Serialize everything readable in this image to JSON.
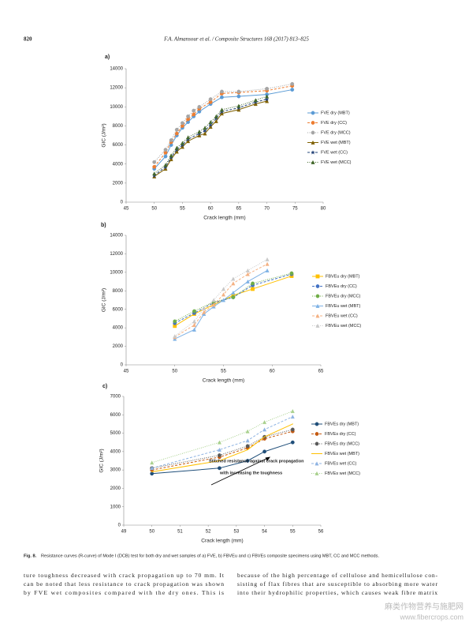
{
  "header": {
    "page": "820",
    "journal": "F.A. Almansour et al. / Composite Structures 168 (2017) 813–825"
  },
  "chart_data": [
    {
      "type": "line",
      "panel": "a)",
      "xlabel": "Crack length (mm)",
      "ylabel": "GIC (J/m²)",
      "xlim": [
        45,
        80
      ],
      "xticks": [
        45,
        50,
        55,
        60,
        65,
        70,
        75,
        80
      ],
      "ylim": [
        0,
        14000
      ],
      "yticks": [
        0,
        2000,
        4000,
        6000,
        8000,
        10000,
        12000,
        14000
      ],
      "series": [
        {
          "name": "FVE dry (MBT)",
          "color": "#5b9bd5",
          "dash": "solid",
          "marker": "circle",
          "x": [
            50,
            52,
            53,
            54,
            55,
            56,
            57,
            58,
            60,
            62,
            65,
            70,
            74.5
          ],
          "values": [
            3500,
            4800,
            6000,
            7000,
            7800,
            8400,
            9000,
            9500,
            10300,
            11000,
            11100,
            11300,
            11800
          ]
        },
        {
          "name": "FVE dry (CC)",
          "color": "#ed7d31",
          "dash": "dash",
          "marker": "circle",
          "x": [
            50,
            52,
            53,
            54,
            55,
            56,
            57,
            58,
            60,
            62,
            65,
            70,
            74.5
          ],
          "values": [
            3700,
            5200,
            6300,
            7200,
            8000,
            8700,
            9200,
            9800,
            10500,
            11400,
            11500,
            11700,
            12200
          ]
        },
        {
          "name": "FVE dry (MCC)",
          "color": "#a5a5a5",
          "dash": "dot",
          "marker": "circle",
          "x": [
            50,
            52,
            53,
            54,
            55,
            56,
            57,
            58,
            60,
            62,
            65,
            70,
            74.5
          ],
          "values": [
            4200,
            5500,
            6500,
            7600,
            8300,
            9000,
            9600,
            10000,
            10800,
            11600,
            11600,
            11900,
            12400
          ]
        },
        {
          "name": "FVE wet (MBT)",
          "color": "#7f6000",
          "dash": "solid",
          "marker": "triangle",
          "x": [
            50,
            52,
            53,
            54,
            55,
            56,
            58,
            59,
            60,
            61,
            62,
            65,
            68,
            70
          ],
          "values": [
            2700,
            3500,
            4500,
            5300,
            5800,
            6400,
            7000,
            7200,
            7900,
            8500,
            9300,
            9700,
            10300,
            10600
          ]
        },
        {
          "name": "FVE wet (CC)",
          "color": "#264478",
          "dash": "dash",
          "marker": "star",
          "x": [
            50,
            52,
            53,
            54,
            55,
            56,
            58,
            59,
            60,
            61,
            62,
            65,
            68,
            70
          ],
          "values": [
            2800,
            3700,
            4700,
            5500,
            6000,
            6600,
            7200,
            7500,
            8100,
            8800,
            9500,
            9900,
            10500,
            10800
          ]
        },
        {
          "name": "FVE wet (MCC)",
          "color": "#43682b",
          "dash": "dot",
          "marker": "triangle",
          "x": [
            50,
            52,
            53,
            54,
            55,
            56,
            58,
            59,
            60,
            61,
            62,
            65,
            68,
            70
          ],
          "values": [
            3000,
            3900,
            4900,
            5700,
            6200,
            6800,
            7400,
            7800,
            8400,
            9000,
            9700,
            10100,
            10700,
            11100
          ]
        }
      ]
    },
    {
      "type": "line",
      "panel": "b)",
      "xlabel": "Crack length (mm)",
      "ylabel": "GIC (J/m²)",
      "xlim": [
        45,
        65
      ],
      "xticks": [
        45,
        50,
        55,
        60,
        65
      ],
      "ylim": [
        0,
        14000
      ],
      "yticks": [
        0,
        2000,
        4000,
        6000,
        8000,
        10000,
        12000,
        14000
      ],
      "series": [
        {
          "name": "FBVEu dry (MBT)",
          "color": "#ffc000",
          "dash": "solid",
          "marker": "square",
          "x": [
            50,
            52,
            54,
            56,
            58,
            62
          ],
          "values": [
            4200,
            5500,
            6500,
            7500,
            8200,
            9600
          ]
        },
        {
          "name": "FBVEu dry (CC)",
          "color": "#4472c4",
          "dash": "dash",
          "marker": "circle",
          "x": [
            50,
            52,
            54,
            56,
            58,
            62
          ],
          "values": [
            4500,
            5600,
            6700,
            7300,
            8600,
            9800
          ]
        },
        {
          "name": "FBVEu dry (MCC)",
          "color": "#70ad47",
          "dash": "dot",
          "marker": "circle",
          "x": [
            50,
            52,
            54,
            56,
            58,
            62
          ],
          "values": [
            4700,
            5800,
            6800,
            7300,
            8800,
            9900
          ]
        },
        {
          "name": "FBVEu wet (MBT)",
          "color": "#7fb2e5",
          "dash": "solid",
          "marker": "triangle",
          "x": [
            50,
            52,
            53,
            54,
            55,
            56,
            57.5,
            59.5
          ],
          "values": [
            2800,
            3800,
            5500,
            6300,
            7000,
            7800,
            9000,
            10200
          ]
        },
        {
          "name": "FBVEu wet (CC)",
          "color": "#f4b183",
          "dash": "dash",
          "marker": "triangle",
          "x": [
            50,
            52,
            53,
            54,
            55,
            56,
            57.5,
            59.5
          ],
          "values": [
            3000,
            4300,
            5700,
            6500,
            7600,
            8800,
            9800,
            10900
          ]
        },
        {
          "name": "FBVEu wet (MCC)",
          "color": "#c9c9c9",
          "dash": "dot",
          "marker": "triangle",
          "x": [
            50,
            52,
            53,
            54,
            55,
            56,
            57.5,
            59.5
          ],
          "values": [
            3100,
            4700,
            6100,
            7000,
            8200,
            9300,
            10200,
            11400
          ]
        }
      ]
    },
    {
      "type": "line",
      "panel": "c)",
      "xlabel": "Crack length (mm)",
      "ylabel": "GIC (J/m²)",
      "xlim": [
        49,
        56
      ],
      "xticks": [
        49,
        50,
        51,
        52,
        53,
        54,
        55,
        56
      ],
      "ylim": [
        0,
        7000
      ],
      "yticks": [
        0,
        1000,
        2000,
        3000,
        4000,
        5000,
        6000,
        7000
      ],
      "annotation": [
        "Stitched resistance against crack propagation",
        "with increasing the toughness"
      ],
      "series": [
        {
          "name": "FBVEs dry (MBT)",
          "color": "#1f4e79",
          "dash": "solid",
          "marker": "circle",
          "x": [
            50,
            52.4,
            53.4,
            54,
            55
          ],
          "values": [
            2800,
            3100,
            3500,
            4000,
            4500
          ]
        },
        {
          "name": "FBVEs dry (CC)",
          "color": "#c55a11",
          "dash": "dash",
          "marker": "circle",
          "x": [
            50,
            52.4,
            53.4,
            54,
            55
          ],
          "values": [
            3000,
            3700,
            4200,
            4700,
            5100
          ]
        },
        {
          "name": "FBVEs dry (MCC)",
          "color": "#595959",
          "dash": "dot",
          "marker": "circle",
          "x": [
            50,
            52.4,
            53.4,
            54,
            55
          ],
          "values": [
            3100,
            3800,
            4300,
            4800,
            5200
          ]
        },
        {
          "name": "FBVEs wet (MBT)",
          "color": "#ffc000",
          "dash": "solid",
          "marker": "none",
          "x": [
            50,
            52.4,
            53.4,
            54,
            55
          ],
          "values": [
            2900,
            3500,
            4100,
            4800,
            5500
          ]
        },
        {
          "name": "FBVEs wet (CC)",
          "color": "#8fb4e3",
          "dash": "dash",
          "marker": "triangle",
          "x": [
            50,
            52.4,
            53.4,
            54,
            55
          ],
          "values": [
            3100,
            4100,
            4600,
            5200,
            5900
          ]
        },
        {
          "name": "FBVEs wet (MCC)",
          "color": "#a9d18e",
          "dash": "dot",
          "marker": "triangle",
          "x": [
            50,
            52.4,
            53.4,
            54,
            55
          ],
          "values": [
            3400,
            4500,
            5100,
            5600,
            6200
          ]
        }
      ]
    }
  ],
  "caption": {
    "label": "Fig. 8.",
    "text": "Resistance curves (R-curve) of Mode I (DCB) test for both dry and wet samples of a) FVE, b) FBVEu and c) FBVEs composite specimens using MBT, CC and MCC methods."
  },
  "body": {
    "left": [
      "ture toughness decreased with crack propagation up to 70 mm. It",
      "can be noted that less resistance to crack propagation was shown",
      "by FVE wet composites compared with the dry ones. This is"
    ],
    "right": [
      "because of the high percentage of cellulose and hemicellulose con-",
      "sisting of flax fibres that are susceptible to absorbing more water",
      "into their hydrophilic properties, which causes weak fibre matrix"
    ]
  },
  "watermark": [
    "麻类作物营养与施肥网",
    "www.fibercrops.com"
  ]
}
